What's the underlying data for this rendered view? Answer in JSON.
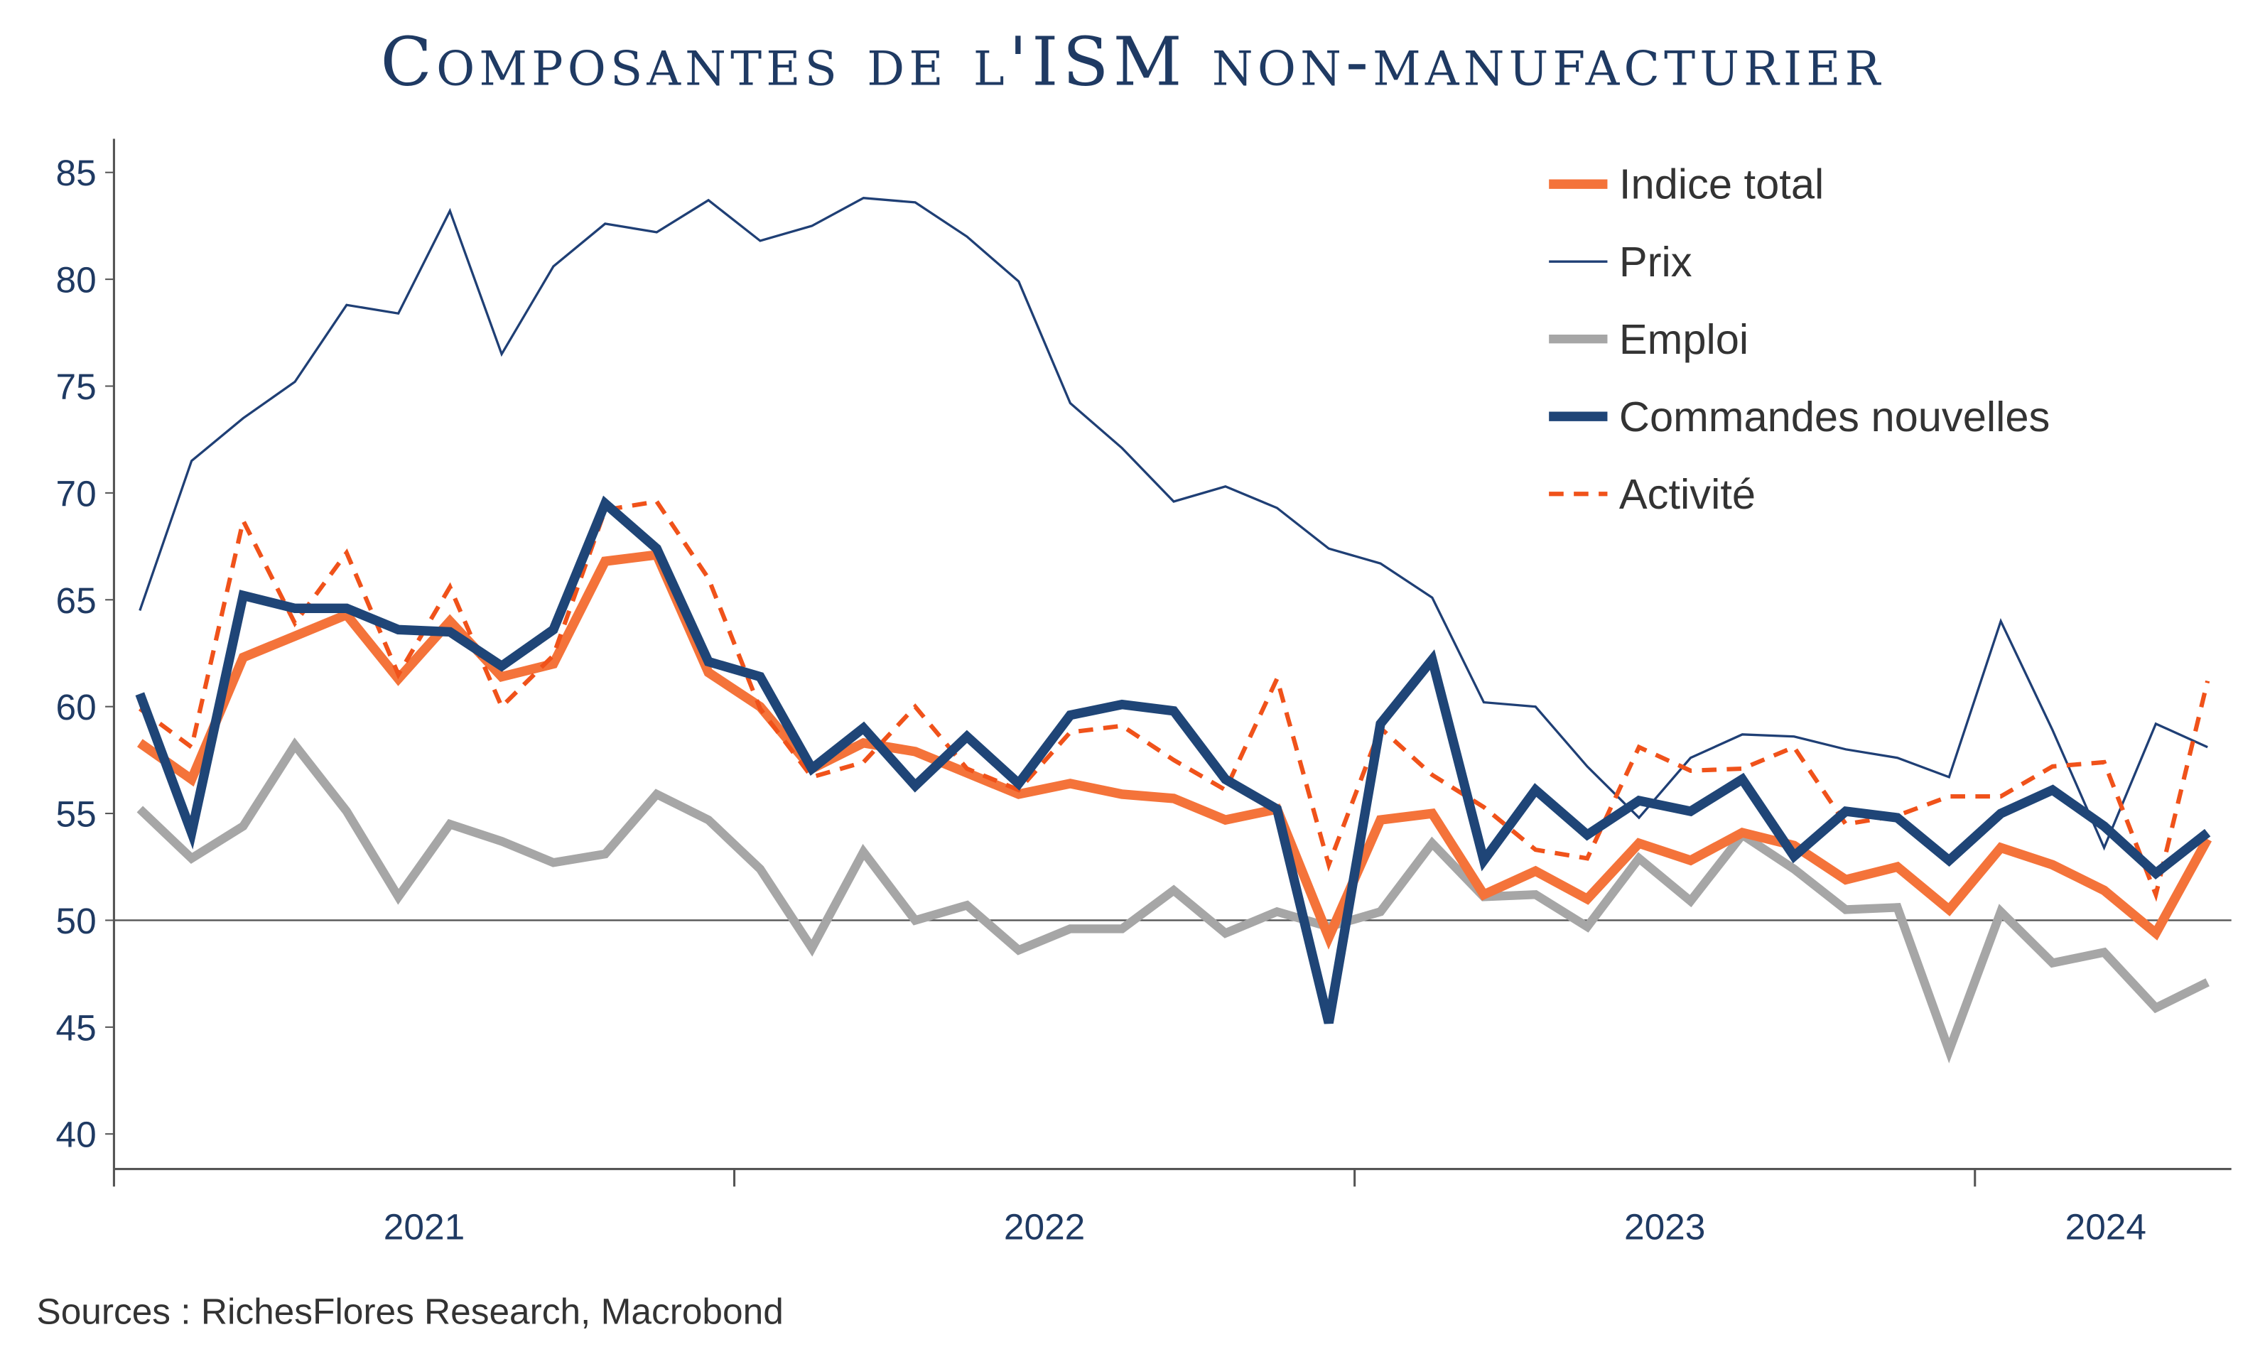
{
  "chart_data": {
    "type": "line",
    "title": "Composantes de l'ISM non-manufacturier",
    "source": "Sources : RichesFlores Research, Macrobond",
    "ylim": [
      40,
      85
    ],
    "yticks": [
      40,
      45,
      50,
      55,
      60,
      65,
      70,
      75,
      80,
      85
    ],
    "reference_line": 50,
    "xlabels": [
      "2021",
      "2022",
      "2023",
      "2024"
    ],
    "x_start": "2021-01",
    "x_end": "2024-05",
    "legend_position": "top-right",
    "series": [
      {
        "name": "Indice total",
        "color": "#f4733a",
        "style": "thick",
        "values": [
          58.3,
          56.6,
          62.3,
          63.3,
          64.3,
          61.3,
          64.0,
          61.4,
          62.0,
          66.8,
          67.1,
          61.6,
          60.0,
          57.1,
          58.3,
          57.9,
          56.9,
          55.9,
          56.4,
          55.9,
          55.7,
          54.7,
          55.2,
          49.2,
          54.7,
          55.0,
          51.2,
          52.3,
          51.0,
          53.6,
          52.8,
          54.1,
          53.5,
          51.9,
          52.5,
          50.5,
          53.4,
          52.6,
          51.4,
          49.4,
          53.8
        ]
      },
      {
        "name": "Prix",
        "color": "#1f3f75",
        "style": "thin",
        "values": [
          64.5,
          71.5,
          73.5,
          75.2,
          78.8,
          78.4,
          83.2,
          76.5,
          80.6,
          82.6,
          82.2,
          83.7,
          81.8,
          82.5,
          83.8,
          83.6,
          82.0,
          79.9,
          74.2,
          72.1,
          69.6,
          70.3,
          69.3,
          67.4,
          66.7,
          65.1,
          60.2,
          60.0,
          57.2,
          54.8,
          57.6,
          58.7,
          58.6,
          58.0,
          57.6,
          56.7,
          64.0,
          58.9,
          53.4,
          59.2,
          58.1
        ]
      },
      {
        "name": "Emploi",
        "color": "#a6a6a6",
        "style": "thick",
        "values": [
          55.2,
          52.9,
          54.4,
          58.2,
          55.1,
          51.1,
          54.5,
          53.7,
          52.7,
          53.1,
          55.9,
          54.7,
          52.4,
          48.7,
          53.2,
          50.0,
          50.7,
          48.6,
          49.6,
          49.6,
          51.4,
          49.4,
          50.4,
          49.7,
          50.4,
          53.6,
          51.1,
          51.2,
          49.7,
          52.9,
          50.9,
          54.0,
          52.4,
          50.5,
          50.6,
          43.9,
          50.4,
          48.0,
          48.5,
          45.9,
          47.1
        ]
      },
      {
        "name": "Commandes nouvelles",
        "color": "#1f4577",
        "style": "thick",
        "values": [
          60.6,
          54.1,
          65.2,
          64.6,
          64.6,
          63.6,
          63.5,
          61.9,
          63.6,
          69.5,
          67.4,
          62.1,
          61.4,
          57.1,
          59.0,
          56.3,
          58.6,
          56.4,
          59.6,
          60.1,
          59.8,
          56.6,
          55.2,
          45.2,
          59.2,
          62.2,
          52.8,
          56.1,
          54.0,
          55.6,
          55.1,
          56.6,
          53.0,
          55.1,
          54.8,
          52.8,
          55.0,
          56.1,
          54.4,
          52.2,
          54.1
        ]
      },
      {
        "name": "Activité",
        "color": "#f0521a",
        "style": "dashed",
        "values": [
          59.9,
          58.1,
          68.7,
          63.9,
          67.2,
          61.5,
          65.6,
          60.0,
          62.4,
          69.2,
          69.6,
          66.0,
          59.9,
          56.7,
          57.4,
          60.0,
          57.1,
          56.1,
          58.8,
          59.1,
          57.5,
          56.1,
          61.3,
          52.6,
          59.0,
          56.8,
          55.3,
          53.3,
          52.9,
          58.1,
          57.0,
          57.1,
          58.1,
          54.5,
          54.9,
          55.8,
          55.8,
          57.2,
          57.4,
          51.2,
          61.2
        ]
      }
    ]
  }
}
